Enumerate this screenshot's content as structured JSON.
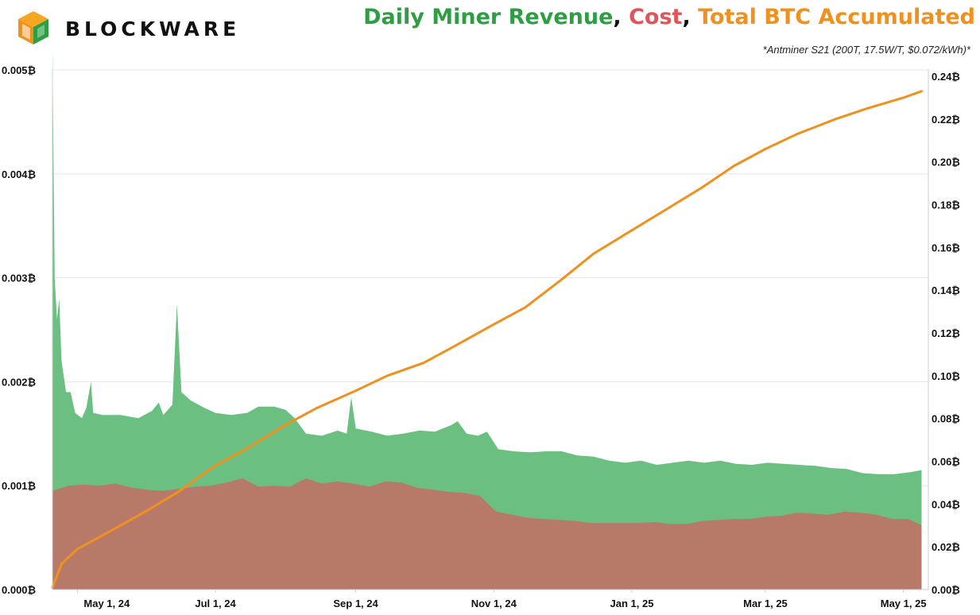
{
  "brand": {
    "name": "BLOCKWARE",
    "logo_icon": "blockware-cube-icon"
  },
  "title": {
    "part1": "Daily Miner Revenue",
    "sep1": ", ",
    "part2": "Cost",
    "sep2": ", ",
    "part3": "Total BTC Accumulated"
  },
  "subtitle": "*Antminer S21 (200T, 17.5W/T, $0.072/kWh)*",
  "colors": {
    "revenue": "#2e9e44",
    "revenue_fill": "#6bbf81",
    "cost": "#e0555a",
    "cost_fill": "#b87a68",
    "accumulated": "#f0911e"
  },
  "chart_data": {
    "type": "area",
    "x_axis": {
      "type": "date",
      "range": [
        "2024-04-20",
        "2025-05-12"
      ],
      "tick_labels": [
        "May 1, 24",
        "Jul 1, 24",
        "Sep 1, 24",
        "Nov 1, 24",
        "Jan 1, 25",
        "Mar 1, 25",
        "May 1, 25"
      ],
      "tick_dates": [
        "2024-05-01",
        "2024-07-01",
        "2024-09-01",
        "2024-11-01",
        "2025-01-01",
        "2025-03-01",
        "2025-05-01"
      ]
    },
    "y_left": {
      "range": [
        0,
        0.005
      ],
      "tick_labels": [
        "0.000₿",
        "0.001₿",
        "0.002₿",
        "0.003₿",
        "0.004₿",
        "0.005₿"
      ],
      "tick_values": [
        0,
        0.001,
        0.002,
        0.003,
        0.004,
        0.005
      ]
    },
    "y_right": {
      "range": [
        0,
        0.24
      ],
      "tick_labels": [
        "0.00₿",
        "0.02₿",
        "0.04₿",
        "0.06₿",
        "0.08₿",
        "0.10₿",
        "0.12₿",
        "0.14₿",
        "0.16₿",
        "0.18₿",
        "0.20₿",
        "0.22₿",
        "0.24₿"
      ],
      "tick_values": [
        0,
        0.02,
        0.04,
        0.06,
        0.08,
        0.1,
        0.12,
        0.14,
        0.16,
        0.18,
        0.2,
        0.22,
        0.24
      ]
    },
    "grid": "horizontal",
    "legend": "none",
    "series": [
      {
        "axis": "left",
        "role": "revenue",
        "points": [
          [
            "2024-04-20",
            0.0052
          ],
          [
            "2024-04-21",
            0.003
          ],
          [
            "2024-04-22",
            0.0026
          ],
          [
            "2024-04-23",
            0.0028
          ],
          [
            "2024-04-24",
            0.0022
          ],
          [
            "2024-04-26",
            0.0019
          ],
          [
            "2024-04-28",
            0.0019
          ],
          [
            "2024-04-30",
            0.0017
          ],
          [
            "2024-05-03",
            0.00165
          ],
          [
            "2024-05-05",
            0.00175
          ],
          [
            "2024-05-07",
            0.002
          ],
          [
            "2024-05-08",
            0.0017
          ],
          [
            "2024-05-12",
            0.00168
          ],
          [
            "2024-05-20",
            0.00168
          ],
          [
            "2024-05-28",
            0.00165
          ],
          [
            "2024-06-03",
            0.00172
          ],
          [
            "2024-06-06",
            0.0018
          ],
          [
            "2024-06-08",
            0.00168
          ],
          [
            "2024-06-12",
            0.00178
          ],
          [
            "2024-06-14",
            0.00275
          ],
          [
            "2024-06-16",
            0.0019
          ],
          [
            "2024-06-20",
            0.00182
          ],
          [
            "2024-06-26",
            0.00175
          ],
          [
            "2024-07-01",
            0.0017
          ],
          [
            "2024-07-08",
            0.00168
          ],
          [
            "2024-07-15",
            0.0017
          ],
          [
            "2024-07-20",
            0.00176
          ],
          [
            "2024-07-27",
            0.00176
          ],
          [
            "2024-08-01",
            0.00173
          ],
          [
            "2024-08-05",
            0.00165
          ],
          [
            "2024-08-10",
            0.0015
          ],
          [
            "2024-08-17",
            0.00148
          ],
          [
            "2024-08-24",
            0.00153
          ],
          [
            "2024-08-28",
            0.0015
          ],
          [
            "2024-08-30",
            0.00185
          ],
          [
            "2024-09-01",
            0.00155
          ],
          [
            "2024-09-08",
            0.00152
          ],
          [
            "2024-09-15",
            0.00148
          ],
          [
            "2024-09-22",
            0.0015
          ],
          [
            "2024-09-29",
            0.00153
          ],
          [
            "2024-10-06",
            0.00152
          ],
          [
            "2024-10-13",
            0.00158
          ],
          [
            "2024-10-16",
            0.00162
          ],
          [
            "2024-10-20",
            0.0015
          ],
          [
            "2024-10-25",
            0.00148
          ],
          [
            "2024-10-29",
            0.00152
          ],
          [
            "2024-11-03",
            0.00135
          ],
          [
            "2024-11-10",
            0.00133
          ],
          [
            "2024-11-17",
            0.00132
          ],
          [
            "2024-11-24",
            0.00133
          ],
          [
            "2024-12-01",
            0.00133
          ],
          [
            "2024-12-08",
            0.00129
          ],
          [
            "2024-12-15",
            0.00128
          ],
          [
            "2024-12-22",
            0.00124
          ],
          [
            "2024-12-29",
            0.00122
          ],
          [
            "2025-01-05",
            0.00124
          ],
          [
            "2025-01-12",
            0.0012
          ],
          [
            "2025-01-19",
            0.00122
          ],
          [
            "2025-01-26",
            0.00124
          ],
          [
            "2025-02-02",
            0.00122
          ],
          [
            "2025-02-09",
            0.00124
          ],
          [
            "2025-02-16",
            0.00121
          ],
          [
            "2025-02-23",
            0.0012
          ],
          [
            "2025-03-02",
            0.00122
          ],
          [
            "2025-03-09",
            0.00121
          ],
          [
            "2025-03-16",
            0.0012
          ],
          [
            "2025-03-23",
            0.00119
          ],
          [
            "2025-03-30",
            0.00117
          ],
          [
            "2025-04-06",
            0.00116
          ],
          [
            "2025-04-13",
            0.00112
          ],
          [
            "2025-04-20",
            0.00111
          ],
          [
            "2025-04-27",
            0.00111
          ],
          [
            "2025-05-04",
            0.00113
          ],
          [
            "2025-05-09",
            0.00115
          ]
        ]
      },
      {
        "axis": "left",
        "role": "cost",
        "points": [
          [
            "2024-04-20",
            0.00095
          ],
          [
            "2024-04-27",
            0.001
          ],
          [
            "2024-05-04",
            0.00101
          ],
          [
            "2024-05-11",
            0.001
          ],
          [
            "2024-05-18",
            0.00102
          ],
          [
            "2024-05-25",
            0.00098
          ],
          [
            "2024-06-01",
            0.00096
          ],
          [
            "2024-06-08",
            0.00095
          ],
          [
            "2024-06-15",
            0.00097
          ],
          [
            "2024-06-22",
            0.00099
          ],
          [
            "2024-06-29",
            0.001
          ],
          [
            "2024-07-06",
            0.00103
          ],
          [
            "2024-07-13",
            0.00107
          ],
          [
            "2024-07-20",
            0.00099
          ],
          [
            "2024-07-27",
            0.001
          ],
          [
            "2024-08-03",
            0.00099
          ],
          [
            "2024-08-10",
            0.00107
          ],
          [
            "2024-08-17",
            0.00102
          ],
          [
            "2024-08-24",
            0.00104
          ],
          [
            "2024-08-31",
            0.00102
          ],
          [
            "2024-09-07",
            0.00099
          ],
          [
            "2024-09-14",
            0.00104
          ],
          [
            "2024-09-21",
            0.00103
          ],
          [
            "2024-09-28",
            0.00098
          ],
          [
            "2024-10-05",
            0.00096
          ],
          [
            "2024-10-12",
            0.00094
          ],
          [
            "2024-10-19",
            0.00093
          ],
          [
            "2024-10-26",
            0.0009
          ],
          [
            "2024-11-02",
            0.00075
          ],
          [
            "2024-11-09",
            0.00072
          ],
          [
            "2024-11-16",
            0.00069
          ],
          [
            "2024-11-23",
            0.00068
          ],
          [
            "2024-11-30",
            0.00067
          ],
          [
            "2024-12-07",
            0.00066
          ],
          [
            "2024-12-14",
            0.00064
          ],
          [
            "2024-12-21",
            0.00064
          ],
          [
            "2024-12-28",
            0.00064
          ],
          [
            "2025-01-04",
            0.00064
          ],
          [
            "2025-01-11",
            0.00065
          ],
          [
            "2025-01-18",
            0.00063
          ],
          [
            "2025-01-25",
            0.00063
          ],
          [
            "2025-02-01",
            0.00066
          ],
          [
            "2025-02-08",
            0.00067
          ],
          [
            "2025-02-15",
            0.00068
          ],
          [
            "2025-02-22",
            0.00068
          ],
          [
            "2025-03-01",
            0.0007
          ],
          [
            "2025-03-08",
            0.00071
          ],
          [
            "2025-03-15",
            0.00074
          ],
          [
            "2025-03-22",
            0.00073
          ],
          [
            "2025-03-29",
            0.00072
          ],
          [
            "2025-04-05",
            0.00075
          ],
          [
            "2025-04-12",
            0.00074
          ],
          [
            "2025-04-19",
            0.00072
          ],
          [
            "2025-04-26",
            0.00068
          ],
          [
            "2025-05-03",
            0.00068
          ],
          [
            "2025-05-09",
            0.00062
          ]
        ]
      },
      {
        "axis": "right",
        "role": "accumulated",
        "points": [
          [
            "2024-04-20",
            0.001
          ],
          [
            "2024-04-24",
            0.012
          ],
          [
            "2024-05-01",
            0.019
          ],
          [
            "2024-05-15",
            0.027
          ],
          [
            "2024-06-01",
            0.037
          ],
          [
            "2024-06-15",
            0.046
          ],
          [
            "2024-07-01",
            0.058
          ],
          [
            "2024-07-15",
            0.066
          ],
          [
            "2024-08-01",
            0.077
          ],
          [
            "2024-08-15",
            0.085
          ],
          [
            "2024-09-01",
            0.093
          ],
          [
            "2024-09-15",
            0.1
          ],
          [
            "2024-10-01",
            0.106
          ],
          [
            "2024-10-15",
            0.114
          ],
          [
            "2024-11-01",
            0.124
          ],
          [
            "2024-11-15",
            0.132
          ],
          [
            "2024-12-01",
            0.145
          ],
          [
            "2024-12-15",
            0.157
          ],
          [
            "2025-01-01",
            0.168
          ],
          [
            "2025-01-15",
            0.177
          ],
          [
            "2025-02-01",
            0.188
          ],
          [
            "2025-02-15",
            0.198
          ],
          [
            "2025-03-01",
            0.206
          ],
          [
            "2025-03-15",
            0.213
          ],
          [
            "2025-04-01",
            0.22
          ],
          [
            "2025-04-15",
            0.225
          ],
          [
            "2025-05-01",
            0.23
          ],
          [
            "2025-05-09",
            0.233
          ]
        ]
      }
    ]
  }
}
